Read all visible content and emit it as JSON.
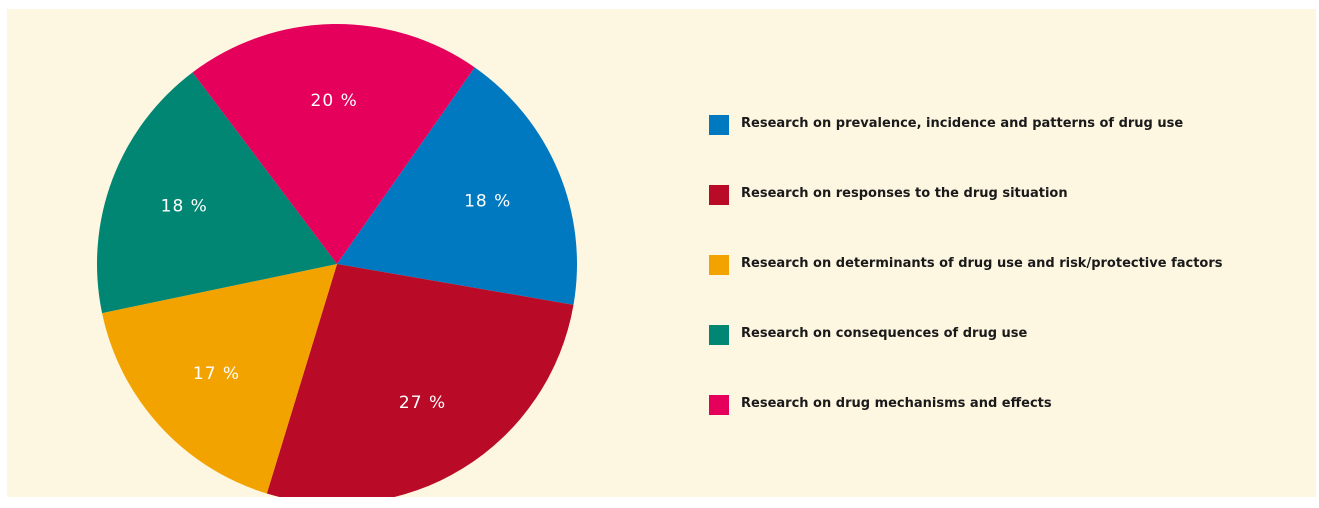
{
  "chart_data": {
    "type": "pie",
    "title": "",
    "legend_position": "right",
    "slices": [
      {
        "label": "Research on prevalence, incidence and patterns of drug use",
        "value": 18,
        "value_label": "18 %",
        "color": "#0079c1"
      },
      {
        "label": "Research on responses to the drug situation",
        "value": 27,
        "value_label": "27 %",
        "color": "#b90a27"
      },
      {
        "label": "Research on determinants of drug use and risk/protective factors",
        "value": 17,
        "value_label": "17 %",
        "color": "#f3a300"
      },
      {
        "label": "Research on consequences of drug use",
        "value": 18,
        "value_label": "18 %",
        "color": "#008672"
      },
      {
        "label": "Research on drug mechanisms and effects",
        "value": 20,
        "value_label": "20 %",
        "color": "#e5005b"
      }
    ]
  }
}
